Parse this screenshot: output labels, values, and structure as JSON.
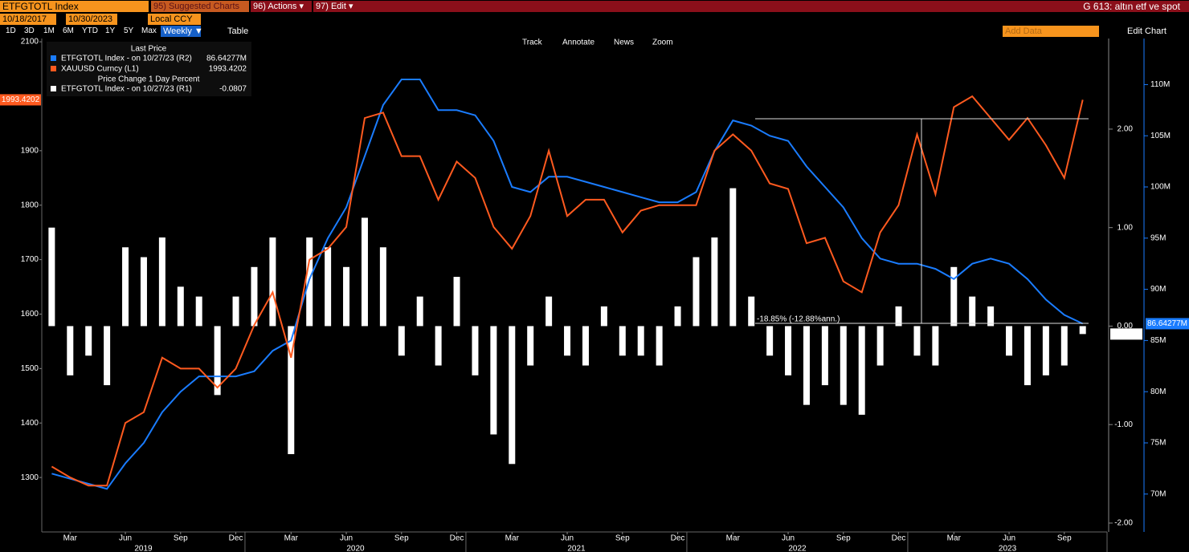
{
  "toolbar": {
    "ticker": "ETFGTOTL Index",
    "suggested": "95) Suggested Charts",
    "actions": "96) Actions ▾",
    "edit": "97) Edit ▾",
    "page_title": "G 613: altın etf ve spot",
    "start_date": "10/18/2017",
    "end_date": "10/30/2023",
    "currency": "Local CCY",
    "periods": [
      "1D",
      "3D",
      "1M",
      "6M",
      "YTD",
      "1Y",
      "5Y",
      "Max"
    ],
    "frequency": "Weekly ▼",
    "table": "Table",
    "add_data": "Add Data",
    "edit_chart": "Edit Chart"
  },
  "chart_tools": [
    "Track",
    "Annotate",
    "News",
    "Zoom"
  ],
  "chart_data": {
    "type": "combo",
    "legend_heading": "Last Price",
    "legend_subheading": "Price Change 1 Day Percent",
    "annotation": "-18.85% (-12.88%ann.)",
    "x": [
      "2019-02",
      "2019-03",
      "2019-04",
      "2019-05",
      "2019-06",
      "2019-07",
      "2019-08",
      "2019-09",
      "2019-10",
      "2019-11",
      "2019-12",
      "2020-01",
      "2020-02",
      "2020-03",
      "2020-04",
      "2020-05",
      "2020-06",
      "2020-07",
      "2020-08",
      "2020-09",
      "2020-10",
      "2020-11",
      "2020-12",
      "2021-01",
      "2021-02",
      "2021-03",
      "2021-04",
      "2021-05",
      "2021-06",
      "2021-07",
      "2021-08",
      "2021-09",
      "2021-10",
      "2021-11",
      "2021-12",
      "2022-01",
      "2022-02",
      "2022-03",
      "2022-04",
      "2022-05",
      "2022-06",
      "2022-07",
      "2022-08",
      "2022-09",
      "2022-10",
      "2022-11",
      "2022-12",
      "2023-01",
      "2023-02",
      "2023-03",
      "2023-04",
      "2023-05",
      "2023-06",
      "2023-07",
      "2023-08",
      "2023-09",
      "2023-10"
    ],
    "xlim": [
      "2019-01",
      "2023-12"
    ],
    "xticks": [
      {
        "value": "2019-03",
        "label": "Mar"
      },
      {
        "value": "2019-06",
        "label": "Jun"
      },
      {
        "value": "2019-09",
        "label": "Sep"
      },
      {
        "value": "2019-12",
        "label": "Dec"
      },
      {
        "value": "2020-03",
        "label": "Mar"
      },
      {
        "value": "2020-06",
        "label": "Jun"
      },
      {
        "value": "2020-09",
        "label": "Sep"
      },
      {
        "value": "2020-12",
        "label": "Dec"
      },
      {
        "value": "2021-03",
        "label": "Mar"
      },
      {
        "value": "2021-06",
        "label": "Jun"
      },
      {
        "value": "2021-09",
        "label": "Sep"
      },
      {
        "value": "2021-12",
        "label": "Dec"
      },
      {
        "value": "2022-03",
        "label": "Mar"
      },
      {
        "value": "2022-06",
        "label": "Jun"
      },
      {
        "value": "2022-09",
        "label": "Sep"
      },
      {
        "value": "2022-12",
        "label": "Dec"
      },
      {
        "value": "2023-03",
        "label": "Mar"
      },
      {
        "value": "2023-06",
        "label": "Jun"
      },
      {
        "value": "2023-09",
        "label": "Sep"
      }
    ],
    "years": [
      "2019",
      "2020",
      "2021",
      "2022",
      "2023"
    ],
    "ylim": [
      1200,
      2106
    ],
    "yticks": [
      1300,
      1400,
      1500,
      1600,
      1700,
      1800,
      1900,
      2100
    ],
    "y2lim": [
      66.3,
      114.5
    ],
    "y2ticks": [
      {
        "value": 70,
        "label": "70M"
      },
      {
        "value": 75,
        "label": "75M"
      },
      {
        "value": 80,
        "label": "80M"
      },
      {
        "value": 85,
        "label": "85M"
      },
      {
        "value": 90,
        "label": "90M"
      },
      {
        "value": 95,
        "label": "95M"
      },
      {
        "value": 100,
        "label": "100M"
      },
      {
        "value": 105,
        "label": "105M"
      },
      {
        "value": 110,
        "label": "110M"
      }
    ],
    "y3lim": [
      -2.09,
      2.92
    ],
    "y3ticks": [
      {
        "value": -2,
        "label": "-2.00"
      },
      {
        "value": -1,
        "label": "-1.00"
      },
      {
        "value": 0,
        "label": "0.00"
      },
      {
        "value": 1,
        "label": "1.00"
      },
      {
        "value": 2,
        "label": "2.00"
      }
    ],
    "series": [
      {
        "name": "ETFGTOTL Index - on 10/27/23 (R2)",
        "type": "line",
        "axis": "y2",
        "color": "#1a7cff",
        "last_label": "86.64277M",
        "values": [
          72,
          71.5,
          71,
          70.5,
          73,
          75,
          78,
          80,
          81.5,
          81.5,
          81.5,
          82,
          84,
          85,
          91,
          95,
          98,
          103,
          108,
          110.5,
          110.5,
          107.5,
          107.5,
          107,
          104.5,
          100,
          99.5,
          101,
          101,
          100.5,
          100,
          99.5,
          99,
          98.5,
          98.5,
          99.5,
          103.5,
          106.5,
          106,
          105,
          104.5,
          102,
          100,
          98,
          95,
          93,
          92.5,
          92.5,
          92,
          91,
          92.5,
          93,
          92.5,
          91,
          89,
          87.5,
          86.64277
        ]
      },
      {
        "name": "XAUUSD Curncy (L1)",
        "type": "line",
        "axis": "y",
        "color": "#ff5a1f",
        "last_label": "1993.4202",
        "values": [
          1320,
          1300,
          1285,
          1285,
          1400,
          1420,
          1520,
          1500,
          1500,
          1465,
          1500,
          1580,
          1640,
          1520,
          1700,
          1720,
          1760,
          1960,
          1970,
          1890,
          1890,
          1810,
          1880,
          1850,
          1760,
          1720,
          1780,
          1900,
          1780,
          1810,
          1810,
          1750,
          1790,
          1800,
          1800,
          1800,
          1900,
          1930,
          1900,
          1840,
          1830,
          1730,
          1740,
          1660,
          1640,
          1750,
          1800,
          1930,
          1820,
          1980,
          2000,
          1960,
          1920,
          1960,
          1910,
          1850,
          1993.4202
        ]
      },
      {
        "name": "ETFGTOTL Index - on 10/27/23 (R1)",
        "type": "bar",
        "axis": "y3",
        "color": "#ffffff",
        "last_label": "-0.0807",
        "values": [
          1.0,
          -0.5,
          -0.3,
          -0.6,
          0.8,
          0.7,
          0.9,
          0.4,
          0.3,
          -0.7,
          0.3,
          0.6,
          0.9,
          -1.3,
          0.9,
          0.8,
          0.6,
          1.1,
          0.8,
          -0.3,
          0.3,
          -0.4,
          0.5,
          -0.5,
          -1.1,
          -1.4,
          -0.4,
          0.3,
          -0.3,
          -0.4,
          0.2,
          -0.3,
          -0.3,
          -0.4,
          0.2,
          0.7,
          0.9,
          1.4,
          0.3,
          -0.3,
          -0.5,
          -0.8,
          -0.6,
          -0.8,
          -0.9,
          -0.4,
          0.2,
          -0.3,
          -0.4,
          0.6,
          0.3,
          0.2,
          -0.3,
          -0.6,
          -0.5,
          -0.4,
          -0.0807
        ]
      }
    ]
  }
}
